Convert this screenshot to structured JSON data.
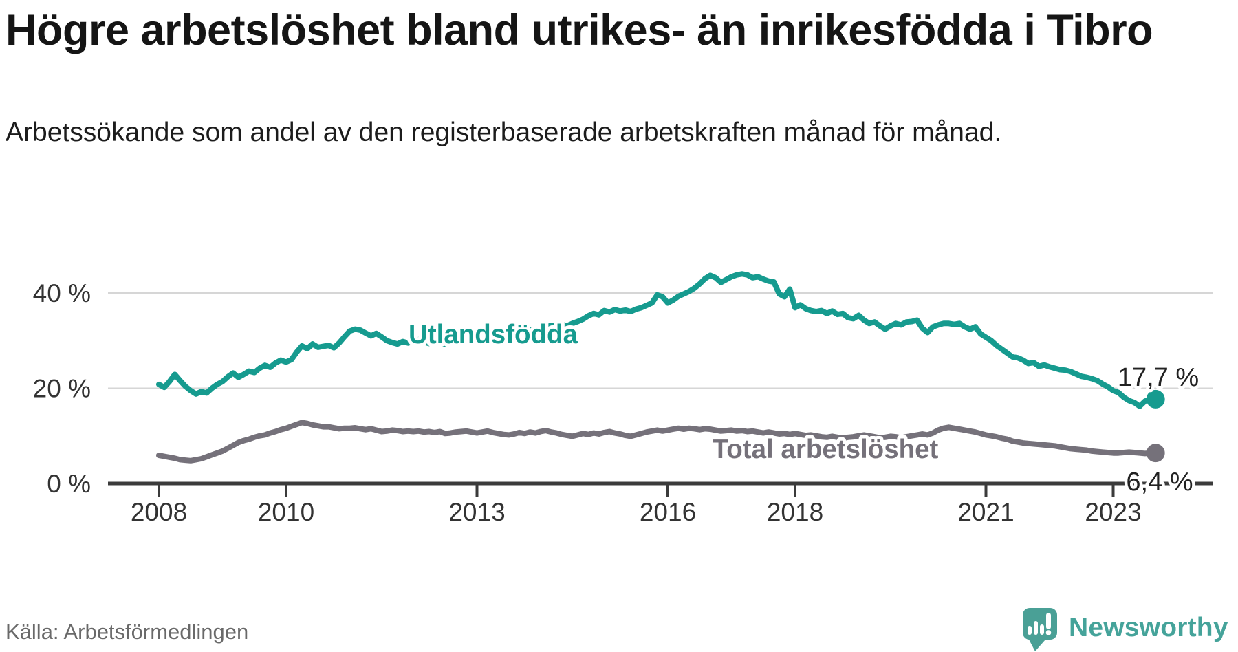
{
  "header": {
    "title": "Högre arbetslöshet bland utrikes- än inrikesfödda i Tibro",
    "subtitle": "Arbetssökande som andel av den registerbaserade arbetskraften månad för månad."
  },
  "footer": {
    "source": "Källa: Arbetsförmedlingen"
  },
  "logo": {
    "text": "Newsworthy",
    "icon": "newsworthy-speech-bubble-chart-icon",
    "color": "#45a39a"
  },
  "chart_data": {
    "type": "line",
    "title": "Högre arbetslöshet bland utrikes- än inrikesfödda i Tibro",
    "xlabel": "",
    "ylabel": "Arbetssökande som andel av den registerbaserade arbetskraften",
    "x_start_year": 2008,
    "x_interval": "monthly",
    "x_end": "2023-09",
    "ylim": [
      0,
      46
    ],
    "grid": "horizontal",
    "legend_position": "inline-labels",
    "axis_color": "#3b3b3b",
    "grid_color": "#d6d6d6",
    "tick_text_color": "#333333",
    "value_label_color": "#222222",
    "x_ticks": [
      {
        "year": 2008,
        "label": "2008"
      },
      {
        "year": 2010,
        "label": "2010"
      },
      {
        "year": 2013,
        "label": "2013"
      },
      {
        "year": 2016,
        "label": "2016"
      },
      {
        "year": 2018,
        "label": "2018"
      },
      {
        "year": 2021,
        "label": "2021"
      },
      {
        "year": 2023,
        "label": "2023"
      }
    ],
    "y_ticks": [
      {
        "value": 0,
        "label": "0 %"
      },
      {
        "value": 20,
        "label": "20 %"
      },
      {
        "value": 40,
        "label": "40 %"
      }
    ],
    "series": [
      {
        "name": "Utlandsfödda",
        "color": "#169b8f",
        "end_label": "17,7 %",
        "last_value": 17.7,
        "values": [
          20.8,
          20.2,
          21.4,
          22.9,
          21.6,
          20.4,
          19.5,
          18.8,
          19.3,
          19.0,
          20.0,
          20.8,
          21.4,
          22.4,
          23.2,
          22.3,
          22.9,
          23.6,
          23.3,
          24.2,
          24.8,
          24.4,
          25.3,
          25.9,
          25.5,
          26.0,
          27.6,
          28.9,
          28.3,
          29.3,
          28.6,
          28.8,
          29.0,
          28.5,
          29.5,
          30.8,
          32.0,
          32.4,
          32.2,
          31.6,
          31.0,
          31.5,
          30.8,
          30.0,
          29.6,
          29.3,
          29.8,
          29.5,
          29.8,
          30.2,
          29.7,
          29.4,
          29.9,
          29.6,
          29.2,
          29.5,
          30.0,
          29.7,
          30.1,
          30.4,
          30.2,
          30.6,
          30.3,
          30.8,
          31.2,
          30.9,
          31.4,
          31.1,
          31.6,
          31.9,
          32.3,
          32.0,
          32.4,
          32.8,
          33.2,
          32.9,
          33.4,
          33.1,
          33.6,
          34.0,
          34.5,
          35.2,
          35.7,
          35.4,
          36.3,
          36.0,
          36.5,
          36.2,
          36.4,
          36.1,
          36.6,
          36.9,
          37.4,
          37.9,
          39.6,
          39.2,
          37.9,
          38.5,
          39.3,
          39.8,
          40.3,
          41.0,
          41.9,
          43.0,
          43.7,
          43.2,
          42.2,
          42.8,
          43.4,
          43.8,
          44.0,
          43.8,
          43.2,
          43.4,
          42.9,
          42.5,
          42.3,
          39.8,
          39.2,
          40.8,
          36.9,
          37.5,
          36.7,
          36.3,
          36.1,
          36.3,
          35.7,
          36.2,
          35.5,
          35.7,
          34.8,
          34.6,
          35.3,
          34.3,
          33.6,
          33.9,
          33.1,
          32.4,
          33.1,
          33.6,
          33.3,
          33.9,
          34.0,
          34.3,
          32.6,
          31.7,
          32.9,
          33.3,
          33.6,
          33.6,
          33.4,
          33.6,
          32.9,
          32.4,
          32.9,
          31.4,
          30.7,
          30.0,
          29.0,
          28.2,
          27.4,
          26.6,
          26.4,
          25.9,
          25.2,
          25.4,
          24.6,
          24.9,
          24.5,
          24.2,
          23.9,
          23.8,
          23.5,
          23.0,
          22.5,
          22.3,
          22.0,
          21.6,
          20.9,
          20.3,
          19.5,
          19.1,
          18.1,
          17.4,
          17.0,
          16.2,
          17.3,
          17.7,
          17.7
        ]
      },
      {
        "name": "Total arbetslöshet",
        "color": "#75717a",
        "end_label": "6,4 %",
        "last_value": 6.4,
        "values": [
          5.9,
          5.7,
          5.5,
          5.3,
          5.0,
          4.9,
          4.8,
          5.0,
          5.2,
          5.6,
          6.0,
          6.4,
          6.8,
          7.4,
          8.0,
          8.6,
          9.0,
          9.3,
          9.7,
          10.0,
          10.2,
          10.6,
          10.9,
          11.3,
          11.6,
          12.0,
          12.4,
          12.8,
          12.6,
          12.3,
          12.1,
          11.9,
          11.9,
          11.7,
          11.5,
          11.6,
          11.6,
          11.7,
          11.5,
          11.3,
          11.5,
          11.2,
          10.9,
          11.0,
          11.2,
          11.1,
          10.9,
          11.0,
          10.9,
          11.0,
          10.8,
          10.9,
          10.7,
          10.9,
          10.5,
          10.6,
          10.8,
          10.9,
          11.0,
          10.8,
          10.6,
          10.8,
          11.0,
          10.7,
          10.5,
          10.3,
          10.2,
          10.4,
          10.7,
          10.5,
          10.8,
          10.6,
          10.9,
          11.1,
          10.8,
          10.6,
          10.3,
          10.1,
          9.9,
          10.2,
          10.5,
          10.3,
          10.6,
          10.4,
          10.7,
          10.9,
          10.6,
          10.4,
          10.1,
          9.9,
          10.2,
          10.5,
          10.8,
          11.0,
          11.2,
          11.0,
          11.2,
          11.4,
          11.6,
          11.4,
          11.6,
          11.5,
          11.3,
          11.5,
          11.4,
          11.2,
          11.0,
          11.1,
          11.2,
          11.0,
          11.1,
          10.9,
          11.0,
          10.8,
          10.6,
          10.8,
          10.6,
          10.4,
          10.5,
          10.3,
          10.5,
          10.3,
          10.1,
          10.2,
          10.0,
          9.8,
          9.7,
          9.9,
          9.7,
          9.5,
          9.7,
          9.8,
          10.0,
          10.2,
          10.0,
          9.8,
          9.6,
          9.7,
          9.9,
          9.8,
          9.6,
          9.8,
          10.0,
          10.2,
          10.4,
          10.2,
          10.6,
          11.2,
          11.6,
          11.8,
          11.6,
          11.4,
          11.2,
          11.0,
          10.8,
          10.5,
          10.2,
          10.0,
          9.8,
          9.5,
          9.3,
          8.9,
          8.7,
          8.5,
          8.4,
          8.3,
          8.2,
          8.1,
          8.0,
          7.9,
          7.7,
          7.5,
          7.3,
          7.2,
          7.1,
          7.0,
          6.8,
          6.7,
          6.6,
          6.5,
          6.4,
          6.4,
          6.5,
          6.6,
          6.5,
          6.4,
          6.3,
          6.4,
          6.4
        ]
      }
    ]
  }
}
